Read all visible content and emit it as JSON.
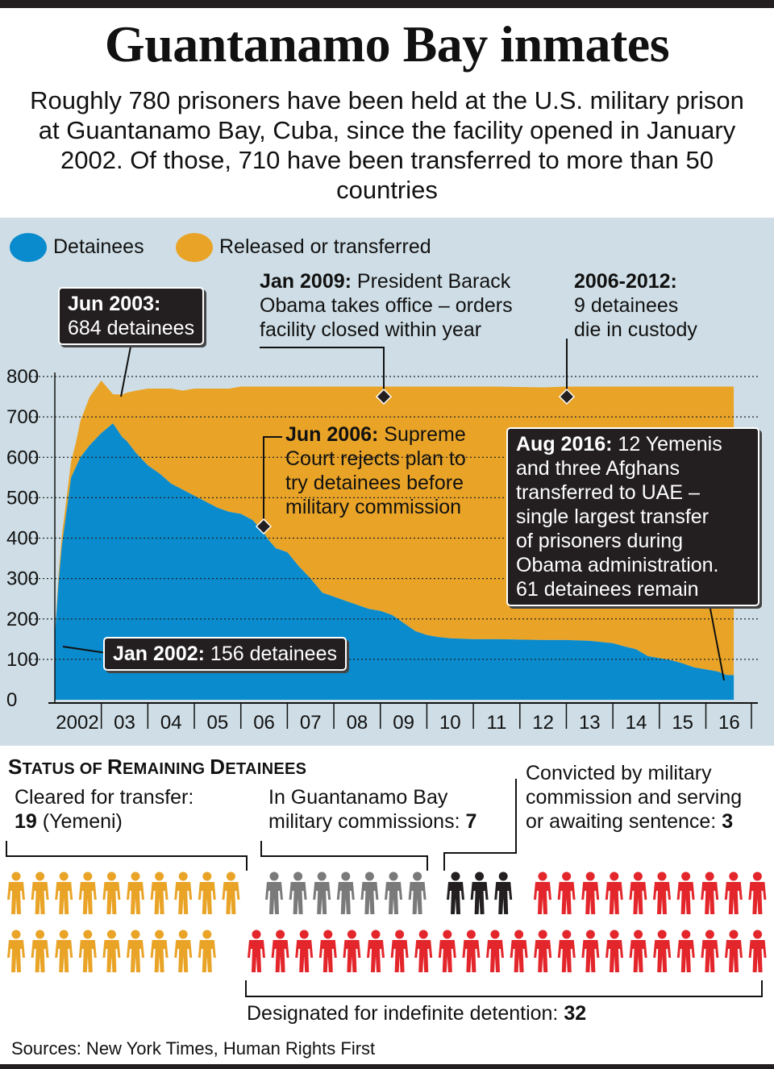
{
  "title": "Guantanamo Bay inmates",
  "subtitle": "Roughly 780 prisoners have been held at the U.S. military prison at Guantanamo Bay, Cuba, since the facility opened in January 2002. Of those, 710 have been transferred to more than 50 countries",
  "legend": {
    "detainees": "Detainees",
    "released": "Released or transferred"
  },
  "colors": {
    "detainees": "#0a8bcd",
    "released": "#e9a428",
    "panel": "#cfdee6",
    "cleared": "#e9a428",
    "commissions": "#7a7a7a",
    "convicted": "#231f20",
    "indefinite": "#e3262b"
  },
  "annotations": {
    "jun2003": {
      "date": "Jun 2003:",
      "text": "684 detainees"
    },
    "jan2009": {
      "date": "Jan 2009:",
      "line1": " President Barack",
      "line2": "Obama takes office – orders",
      "line3": "facility closed within year"
    },
    "y2006_2012": {
      "date": "2006-2012:",
      "line1": "9 detainees",
      "line2": "die in custody"
    },
    "jun2006": {
      "date": "Jun 2006:",
      "line1": " Supreme",
      "line2": "Court rejects plan to",
      "line3": "try detainees before",
      "line4": "military commission"
    },
    "aug2016": {
      "date": "Aug 2016:",
      "line1": " 12 Yemenis",
      "line2": "and three Afghans",
      "line3": "transferred to UAE –",
      "line4": "single largest transfer",
      "line5": "of prisoners during",
      "line6": "Obama administration.",
      "line7": "61 detainees remain"
    },
    "jan2002": {
      "date": "Jan 2002:",
      "text": " 156 detainees"
    }
  },
  "chart_data": {
    "type": "area",
    "x_tick_labels": [
      "2002",
      "03",
      "04",
      "05",
      "06",
      "07",
      "08",
      "09",
      "10",
      "11",
      "12",
      "13",
      "14",
      "15",
      "16"
    ],
    "y_ticks": [
      0,
      100,
      200,
      300,
      400,
      500,
      600,
      700,
      800
    ],
    "ylim": [
      0,
      800
    ],
    "xlim": [
      2002.0,
      2016.65
    ],
    "grid": "dotted horizontal",
    "series": [
      {
        "name": "Detainees",
        "x": [
          2002.0,
          2002.08,
          2002.15,
          2002.35,
          2002.45,
          2002.55,
          2002.75,
          2003.0,
          2003.25,
          2003.45,
          2003.55,
          2003.75,
          2004.0,
          2004.25,
          2004.5,
          2004.75,
          2005.0,
          2005.25,
          2005.5,
          2005.75,
          2006.0,
          2006.25,
          2006.45,
          2006.6,
          2006.75,
          2007.0,
          2007.25,
          2007.5,
          2007.75,
          2008.0,
          2008.25,
          2008.5,
          2008.75,
          2009.0,
          2009.25,
          2009.5,
          2009.75,
          2010.0,
          2010.25,
          2010.5,
          2011.0,
          2011.5,
          2012.0,
          2012.5,
          2013.0,
          2013.5,
          2014.0,
          2014.25,
          2014.5,
          2014.75,
          2015.0,
          2015.25,
          2015.5,
          2015.75,
          2016.0,
          2016.25,
          2016.45,
          2016.6
        ],
        "values": [
          156,
          290,
          380,
          550,
          575,
          600,
          630,
          660,
          684,
          650,
          640,
          610,
          580,
          560,
          535,
          520,
          505,
          490,
          475,
          465,
          460,
          445,
          420,
          395,
          375,
          365,
          330,
          300,
          265,
          255,
          245,
          235,
          225,
          220,
          210,
          190,
          170,
          160,
          155,
          152,
          150,
          150,
          149,
          148,
          148,
          146,
          140,
          132,
          125,
          108,
          103,
          98,
          90,
          80,
          75,
          70,
          61,
          61
        ]
      },
      {
        "name": "Released or transferred",
        "x": [
          2002.0,
          2002.08,
          2002.15,
          2002.35,
          2002.45,
          2002.55,
          2002.75,
          2003.0,
          2003.25,
          2003.45,
          2003.55,
          2003.75,
          2004.0,
          2004.25,
          2004.5,
          2004.75,
          2005.0,
          2005.25,
          2005.5,
          2005.75,
          2006.0,
          2006.25,
          2006.45,
          2006.6,
          2006.75,
          2007.0,
          2007.25,
          2007.5,
          2007.75,
          2008.0,
          2008.25,
          2008.5,
          2008.75,
          2009.0,
          2009.25,
          2009.5,
          2009.75,
          2010.0,
          2010.25,
          2010.5,
          2011.0,
          2011.5,
          2012.0,
          2012.5,
          2013.0,
          2013.5,
          2014.0,
          2014.25,
          2014.5,
          2014.75,
          2015.0,
          2015.25,
          2015.5,
          2015.75,
          2016.0,
          2016.25,
          2016.45,
          2016.6
        ],
        "values": [
          0,
          20,
          25,
          40,
          60,
          90,
          120,
          130,
          72,
          105,
          120,
          155,
          190,
          210,
          235,
          245,
          265,
          280,
          295,
          305,
          315,
          330,
          355,
          380,
          400,
          410,
          445,
          475,
          510,
          520,
          530,
          540,
          550,
          555,
          565,
          585,
          605,
          615,
          620,
          623,
          625,
          625,
          625,
          625,
          627,
          629,
          635,
          643,
          650,
          667,
          672,
          677,
          685,
          695,
          700,
          705,
          714,
          714
        ]
      }
    ],
    "status": {
      "title_first": "S",
      "title_rest_a": "TATUS OF ",
      "title_r": "R",
      "title_rest_b": "EMAINING ",
      "title_d": "D",
      "title_rest_c": "ETAINEES",
      "cleared": {
        "label": "Cleared for transfer:",
        "count": "19",
        "suffix": " (Yemeni)",
        "value": 19
      },
      "commissions": {
        "label_line1": "In Guantanamo Bay",
        "label_line2": "military commissions: ",
        "count": "7",
        "value": 7
      },
      "convicted": {
        "label_line1": "Convicted by military",
        "label_line2": "commission and serving",
        "label_line3": "or awaiting sentence: ",
        "count": "3",
        "value": 3
      },
      "indefinite": {
        "label": "Designated for indefinite detention: ",
        "count": "32",
        "value": 32
      }
    }
  },
  "footer": "Sources: New York Times, Human Rights First"
}
